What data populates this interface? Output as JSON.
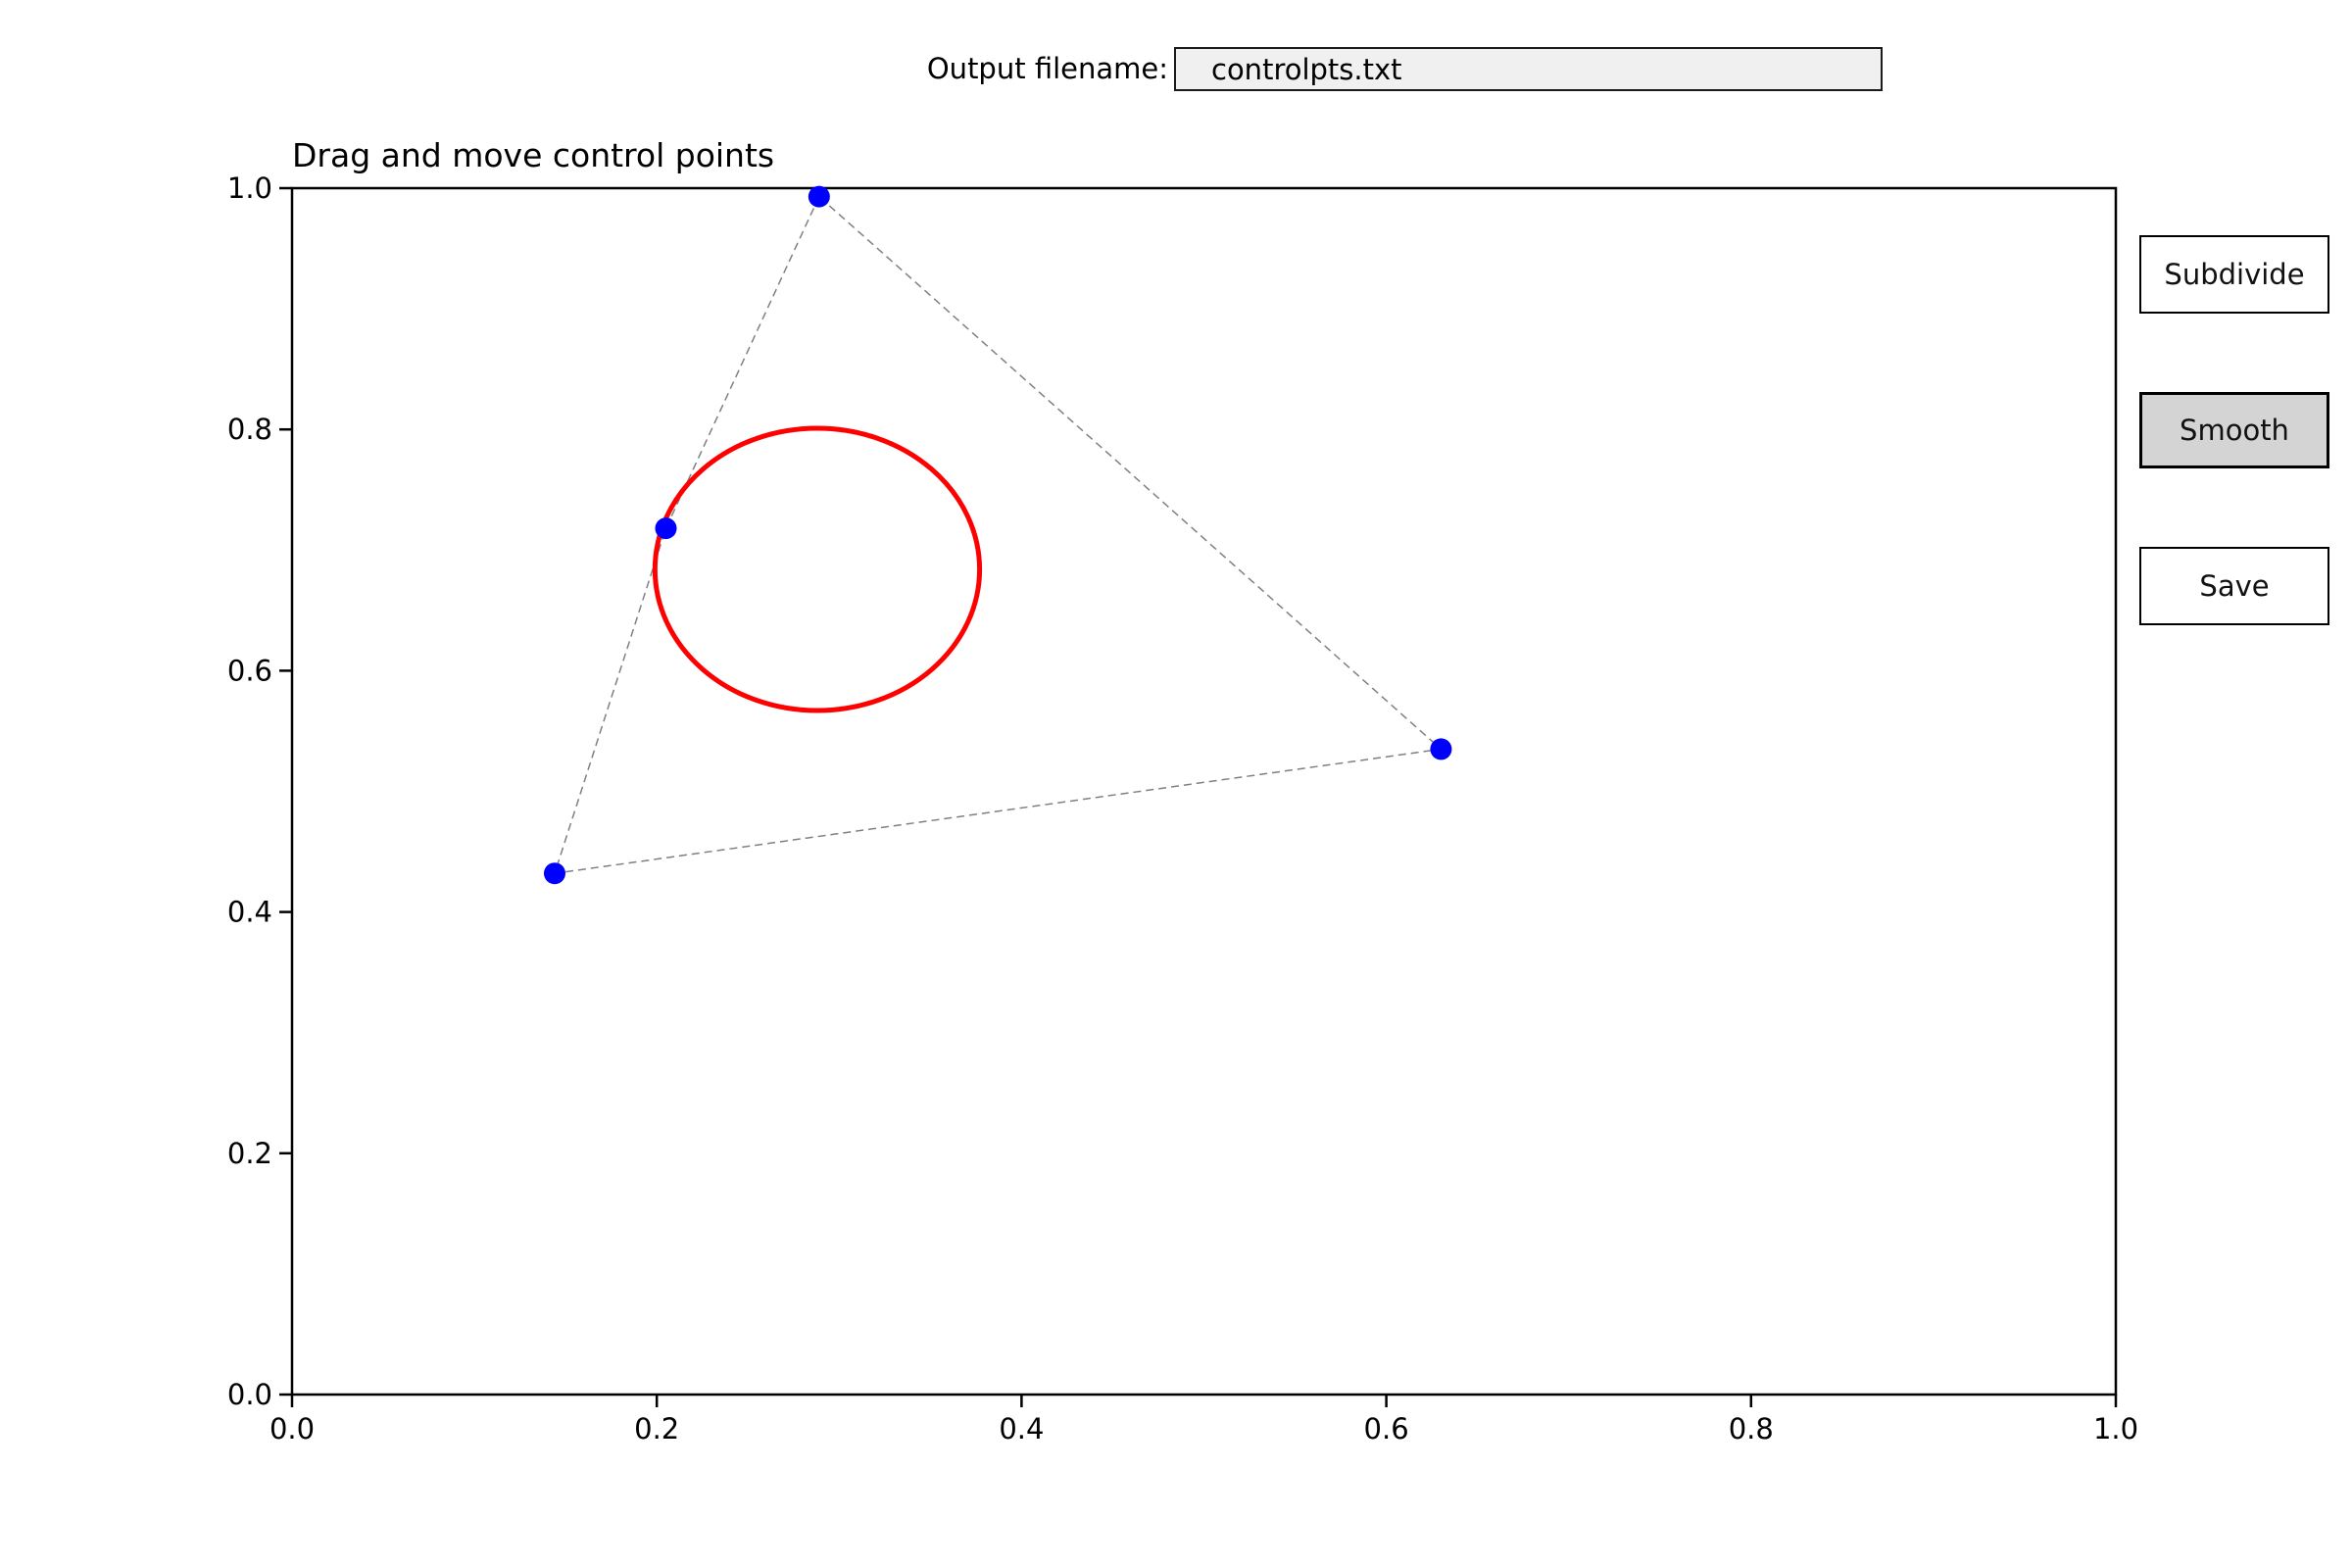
{
  "window": {
    "background": "#ffffff"
  },
  "header": {
    "filename_label": "Output filename:",
    "filename_value": "controlpts.txt"
  },
  "toolbar": {
    "buttons": [
      {
        "label": "Subdivide",
        "state": "normal"
      },
      {
        "label": "Smooth",
        "state": "hover"
      },
      {
        "label": "Save",
        "state": "normal"
      }
    ]
  },
  "chart_data": {
    "type": "scatter",
    "title": "Drag and move control points",
    "xlabel": "",
    "ylabel": "",
    "xlim": [
      0.0,
      1.0
    ],
    "ylim": [
      0.0,
      1.0
    ],
    "xticks": [
      "0.0",
      "0.2",
      "0.4",
      "0.6",
      "0.8",
      "1.0"
    ],
    "yticks": [
      "0.0",
      "0.2",
      "0.4",
      "0.6",
      "0.8",
      "1.0"
    ],
    "grid": false,
    "legend": false,
    "control_points": [
      [
        0.289,
        0.993
      ],
      [
        0.205,
        0.718
      ],
      [
        0.144,
        0.432
      ],
      [
        0.63,
        0.535
      ]
    ],
    "control_polygon": {
      "closed": true,
      "style": "dashed",
      "color": "#808080",
      "width": 1.5
    },
    "smooth_curve": {
      "shape": "ellipse",
      "center": [
        0.288,
        0.684
      ],
      "rx": 0.089,
      "ry": 0.117,
      "color": "#ff0000",
      "width": 5
    },
    "point_style": {
      "color": "#0000ff",
      "radius": 11
    }
  }
}
